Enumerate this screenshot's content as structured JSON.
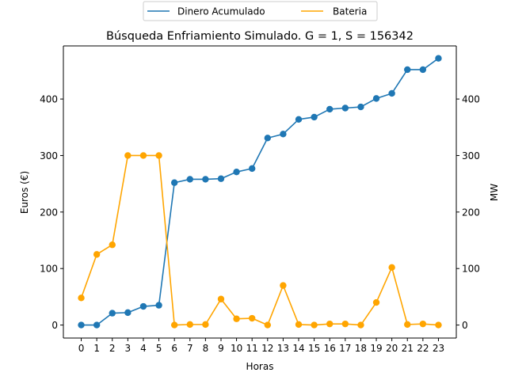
{
  "chart_data": {
    "type": "line",
    "title": "Búsqueda Enfriamiento Simulado. G = 1, S = 156342",
    "xlabel": "Horas",
    "ylabel": "Euros (€)",
    "y2label": "MW",
    "x": [
      0,
      1,
      2,
      3,
      4,
      5,
      6,
      7,
      8,
      9,
      10,
      11,
      12,
      13,
      14,
      15,
      16,
      17,
      18,
      19,
      20,
      21,
      22,
      23
    ],
    "xticks": [
      "0",
      "1",
      "2",
      "3",
      "4",
      "5",
      "6",
      "7",
      "8",
      "9",
      "10",
      "11",
      "12",
      "13",
      "14",
      "15",
      "16",
      "17",
      "18",
      "19",
      "20",
      "21",
      "22",
      "23"
    ],
    "ylim": [
      -23,
      494
    ],
    "yticks": [
      "0",
      "100",
      "200",
      "300",
      "400"
    ],
    "y2ticks": [
      "0",
      "100",
      "200",
      "300",
      "400"
    ],
    "grid": false,
    "legend_position": "top-center",
    "series": [
      {
        "name": "Dinero Acumulado",
        "axis": "left",
        "color": "#1f77b4",
        "values": [
          0,
          0,
          21,
          22,
          33,
          35,
          252,
          258,
          258,
          259,
          271,
          277,
          331,
          338,
          364,
          368,
          382,
          384,
          386,
          401,
          410,
          452,
          452,
          472
        ]
      },
      {
        "name": "Bateria",
        "axis": "right",
        "color": "#ffa500",
        "values": [
          48,
          125,
          142,
          300,
          300,
          300,
          0,
          1,
          1,
          46,
          11,
          12,
          0,
          70,
          1,
          0,
          2,
          2,
          0,
          40,
          102,
          1,
          2,
          0
        ]
      }
    ]
  }
}
